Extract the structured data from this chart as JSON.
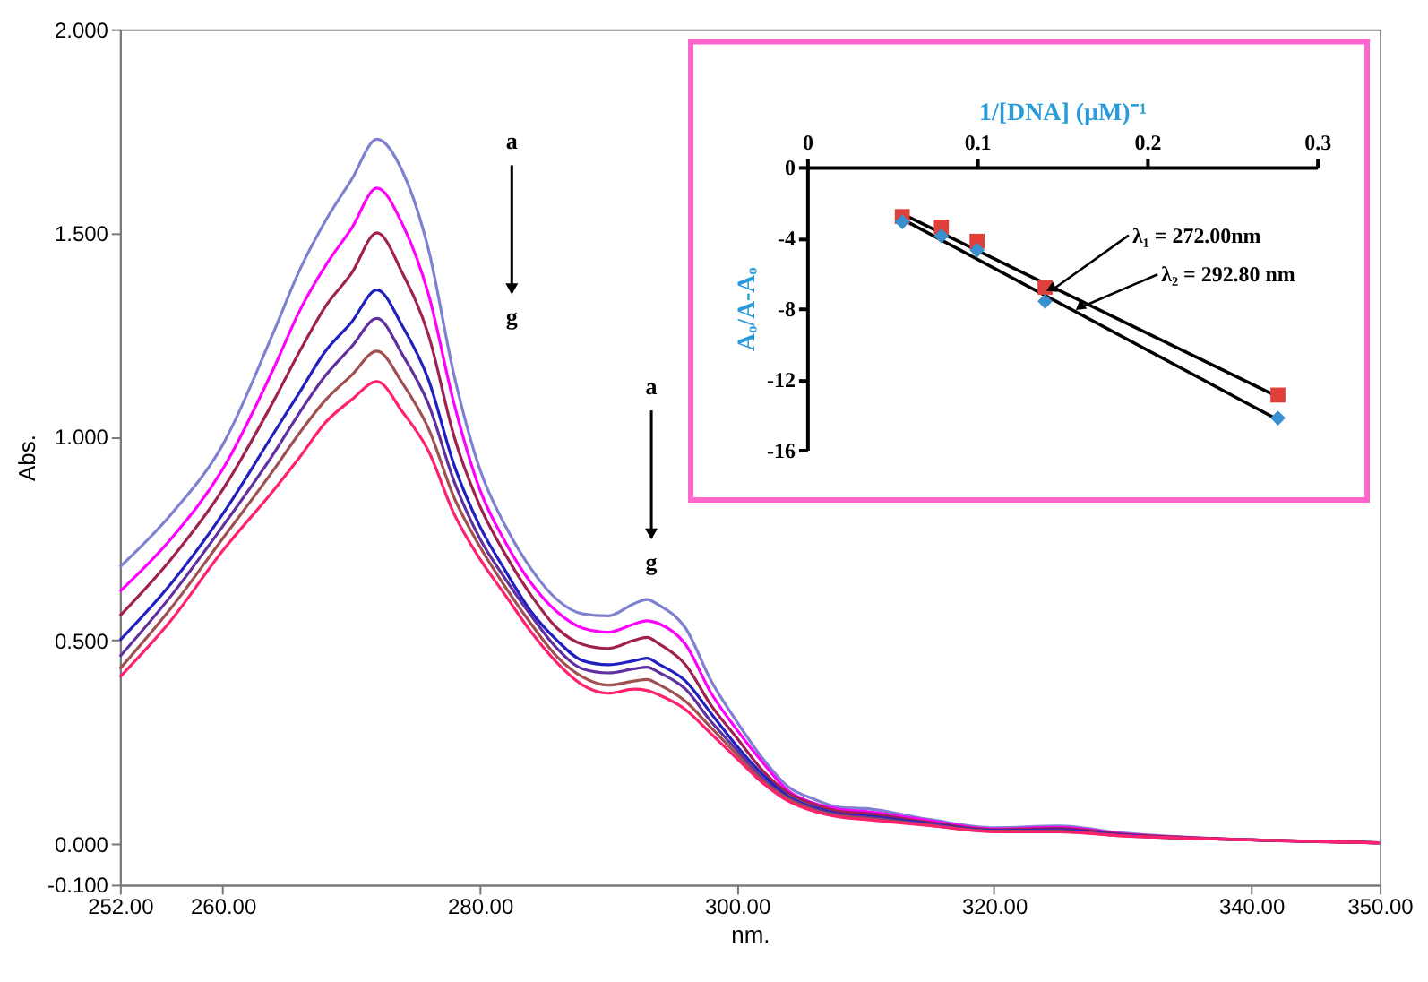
{
  "chart_data": [
    {
      "type": "line",
      "xlabel": "nm.",
      "ylabel": "Abs.",
      "x": [
        252,
        256,
        260,
        264,
        266,
        268,
        270,
        272,
        274,
        276,
        278,
        280,
        282,
        284,
        286,
        288,
        290,
        292,
        293,
        294,
        296,
        298,
        300,
        302,
        304,
        306,
        308,
        310,
        315,
        320,
        325,
        330,
        340,
        350
      ],
      "xlim": [
        252,
        350
      ],
      "xticks": [
        {
          "value": 252,
          "label": "252.00"
        },
        {
          "value": 260,
          "label": "260.00"
        },
        {
          "value": 280,
          "label": "280.00"
        },
        {
          "value": 300,
          "label": "300.00"
        },
        {
          "value": 320,
          "label": "320.00"
        },
        {
          "value": 340,
          "label": "340.00"
        },
        {
          "value": 350,
          "label": "350.00"
        }
      ],
      "ylim": [
        -0.1,
        2
      ],
      "yticks": [
        {
          "value": -0.1,
          "label": "-0.100"
        },
        {
          "value": 0,
          "label": "0.000"
        },
        {
          "value": 0.5,
          "label": "0.500"
        },
        {
          "value": 1,
          "label": "1.000"
        },
        {
          "value": 1.5,
          "label": "1.500"
        },
        {
          "value": 2,
          "label": "2.000"
        }
      ],
      "series": [
        {
          "color": "#8080d0",
          "values": [
            0.68,
            0.81,
            0.98,
            1.26,
            1.41,
            1.53,
            1.63,
            1.73,
            1.65,
            1.46,
            1.15,
            0.92,
            0.78,
            0.675,
            0.6,
            0.565,
            0.56,
            0.59,
            0.6,
            0.585,
            0.53,
            0.4,
            0.3,
            0.21,
            0.14,
            0.11,
            0.09,
            0.087,
            0.06,
            0.04,
            0.044,
            0.027,
            0.01,
            0.003
          ]
        },
        {
          "color": "#ff00ff",
          "values": [
            0.62,
            0.75,
            0.92,
            1.17,
            1.31,
            1.42,
            1.51,
            1.61,
            1.52,
            1.35,
            1.08,
            0.87,
            0.74,
            0.64,
            0.57,
            0.53,
            0.52,
            0.54,
            0.548,
            0.54,
            0.49,
            0.37,
            0.28,
            0.2,
            0.13,
            0.1,
            0.085,
            0.08,
            0.057,
            0.037,
            0.041,
            0.025,
            0.01,
            0.003
          ]
        },
        {
          "color": "#a02050",
          "values": [
            0.56,
            0.7,
            0.87,
            1.09,
            1.21,
            1.32,
            1.4,
            1.5,
            1.4,
            1.25,
            1.0,
            0.83,
            0.71,
            0.61,
            0.53,
            0.49,
            0.48,
            0.5,
            0.507,
            0.49,
            0.44,
            0.34,
            0.26,
            0.18,
            0.125,
            0.097,
            0.08,
            0.075,
            0.053,
            0.035,
            0.038,
            0.024,
            0.01,
            0.003
          ]
        },
        {
          "color": "#2020c0",
          "values": [
            0.5,
            0.64,
            0.81,
            1.01,
            1.11,
            1.21,
            1.28,
            1.36,
            1.27,
            1.14,
            0.93,
            0.78,
            0.67,
            0.57,
            0.5,
            0.45,
            0.44,
            0.45,
            0.456,
            0.44,
            0.4,
            0.32,
            0.24,
            0.17,
            0.117,
            0.09,
            0.074,
            0.069,
            0.05,
            0.033,
            0.035,
            0.022,
            0.01,
            0.003
          ]
        },
        {
          "color": "#6030a0",
          "values": [
            0.46,
            0.61,
            0.78,
            0.96,
            1.06,
            1.15,
            1.22,
            1.29,
            1.2,
            1.08,
            0.89,
            0.75,
            0.65,
            0.56,
            0.48,
            0.43,
            0.42,
            0.43,
            0.434,
            0.42,
            0.38,
            0.3,
            0.23,
            0.16,
            0.113,
            0.087,
            0.072,
            0.066,
            0.048,
            0.032,
            0.033,
            0.021,
            0.01,
            0.003
          ]
        },
        {
          "color": "#a05050",
          "values": [
            0.43,
            0.58,
            0.75,
            0.92,
            1.01,
            1.09,
            1.15,
            1.21,
            1.13,
            1.02,
            0.85,
            0.73,
            0.63,
            0.54,
            0.46,
            0.41,
            0.39,
            0.4,
            0.404,
            0.39,
            0.35,
            0.285,
            0.22,
            0.155,
            0.11,
            0.083,
            0.069,
            0.063,
            0.046,
            0.031,
            0.031,
            0.02,
            0.01,
            0.003
          ]
        },
        {
          "color": "#ff2070",
          "values": [
            0.41,
            0.55,
            0.72,
            0.87,
            0.95,
            1.035,
            1.09,
            1.135,
            1.06,
            0.965,
            0.81,
            0.7,
            0.61,
            0.52,
            0.445,
            0.39,
            0.37,
            0.38,
            0.377,
            0.365,
            0.33,
            0.27,
            0.21,
            0.15,
            0.105,
            0.08,
            0.066,
            0.06,
            0.045,
            0.03,
            0.03,
            0.02,
            0.01,
            0.003
          ]
        }
      ],
      "annotations": [
        "a",
        "g",
        "a",
        "g"
      ]
    },
    {
      "type": "scatter",
      "xlabel": "1/[DNA] (μM)⁻¹",
      "ylabel": "Aₒ/A-Aₒ",
      "xlim": [
        0,
        0.3
      ],
      "xticks": [
        0,
        0.1,
        0.2,
        0.3
      ],
      "ylim": [
        -16,
        0
      ],
      "yticks": [
        0,
        -4,
        -8,
        -12,
        -16
      ],
      "series": [
        {
          "type": "scatter",
          "marker": "square",
          "color": "#e0403a",
          "x": [
            0.056,
            0.079,
            0.1,
            0.14,
            0.277
          ],
          "values": [
            -2.8,
            -3.4,
            -4.2,
            -6.8,
            -12.9
          ]
        },
        {
          "type": "scatter",
          "marker": "diamond",
          "color": "#3a8fd0",
          "x": [
            0.056,
            0.079,
            0.1,
            0.14,
            0.277
          ],
          "values": [
            -3.1,
            -3.9,
            -4.7,
            -7.6,
            -14.2
          ]
        },
        {
          "type": "line",
          "color": "#000000",
          "x": [
            0.057,
            0.277
          ],
          "values": [
            -2.7,
            -13.0
          ]
        },
        {
          "type": "line",
          "color": "#000000",
          "x": [
            0.057,
            0.277
          ],
          "values": [
            -3.0,
            -14.3
          ]
        }
      ],
      "annotations": [
        {
          "text": "λ₁ = 272.00nm",
          "x": 0.145,
          "y": -6.9
        },
        {
          "text": "λ₂ = 292.80 nm",
          "x": 0.162,
          "y": -7.9
        }
      ]
    }
  ]
}
